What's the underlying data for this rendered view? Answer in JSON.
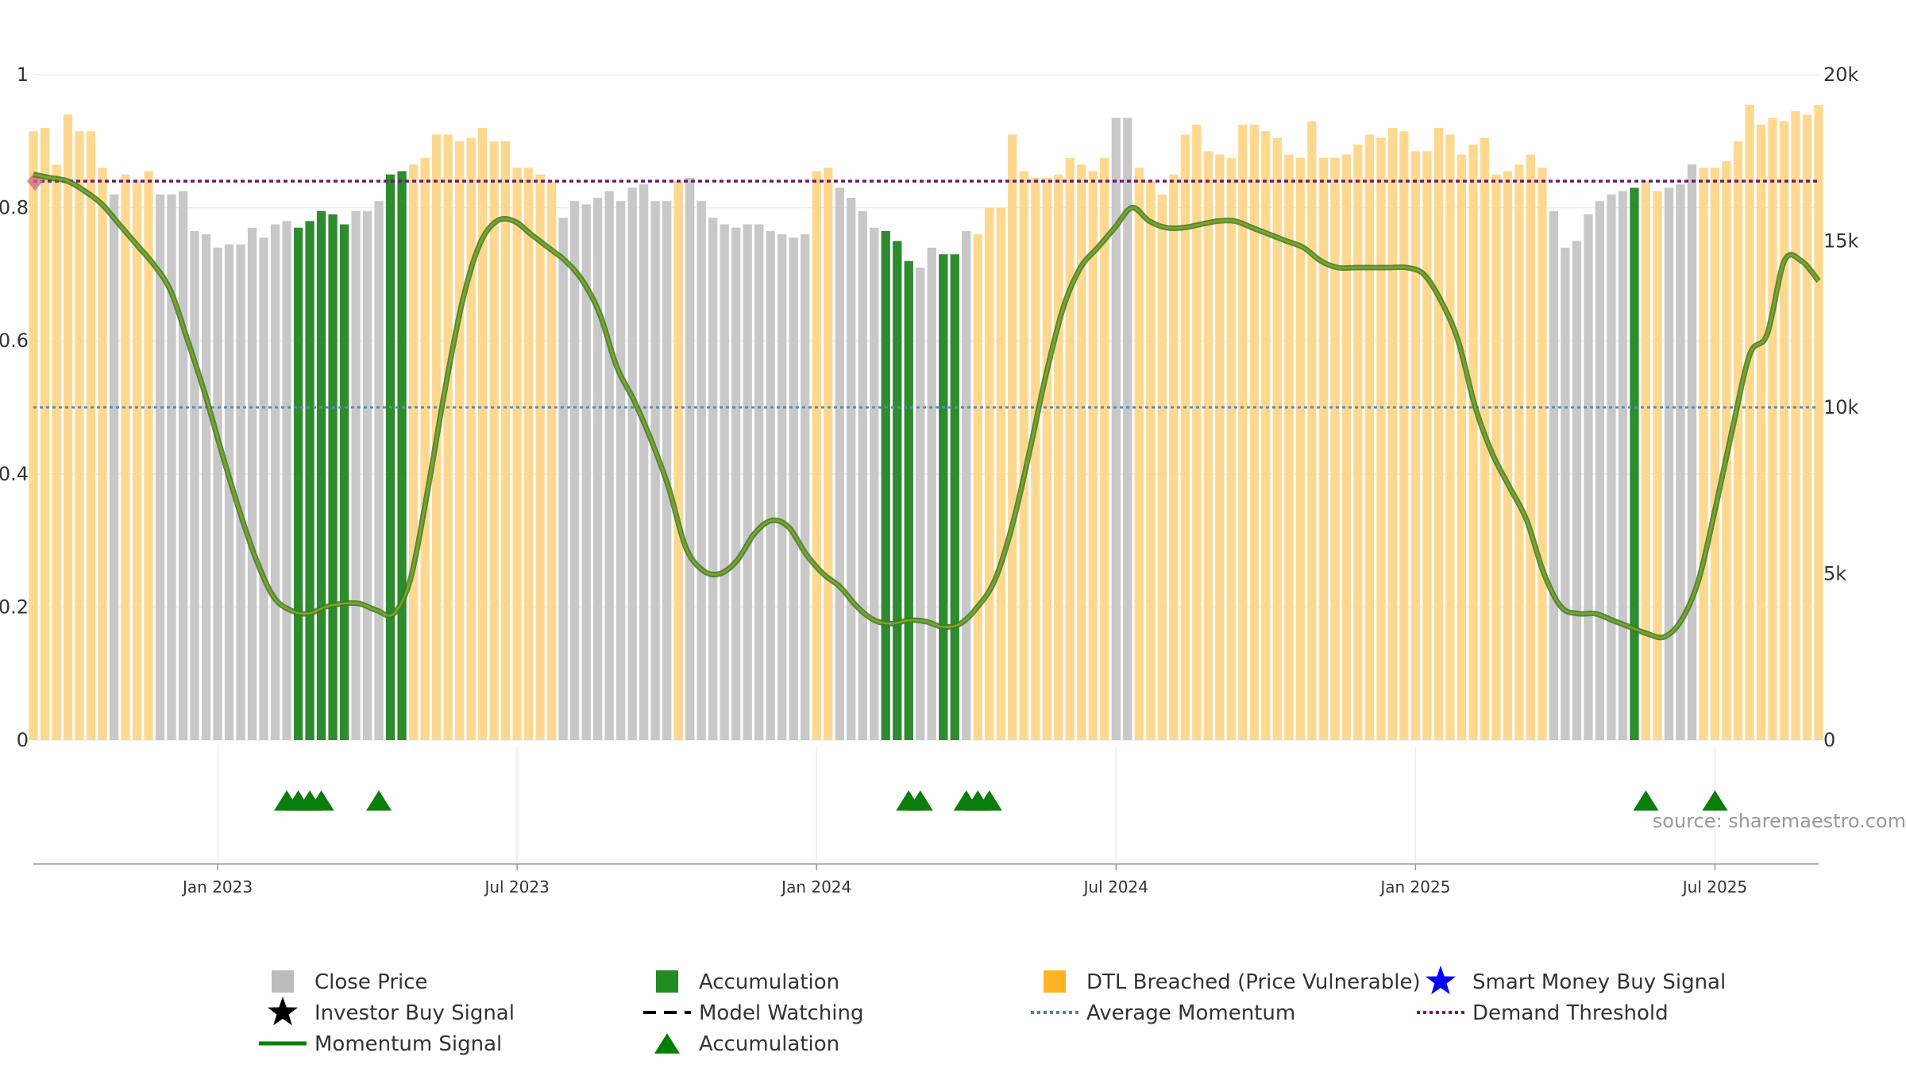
{
  "chart_data": {
    "type": "bar",
    "source_note": "source: sharemaestro.com",
    "y_left": {
      "min": 0,
      "max": 1,
      "ticks": [
        0,
        0.2,
        0.4,
        0.6,
        0.8,
        1
      ],
      "tick_labels": [
        "0",
        "0.2",
        "0.4",
        "0.6",
        "0.8",
        "1"
      ]
    },
    "y_right": {
      "min": 0,
      "max": 20000,
      "ticks": [
        0,
        5000,
        10000,
        15000,
        20000
      ],
      "tick_labels": [
        "0",
        "5k",
        "10k",
        "15k",
        "20k"
      ]
    },
    "x_ticks": [
      {
        "label": "Jan 2023",
        "week": 16
      },
      {
        "label": "Jul 2023",
        "week": 42
      },
      {
        "label": "Jan 2024",
        "week": 68
      },
      {
        "label": "Jul 2024",
        "week": 94
      },
      {
        "label": "Jan 2025",
        "week": 120
      },
      {
        "label": "Jul 2025",
        "week": 146
      }
    ],
    "close_price": [
      18.3,
      18.4,
      17.3,
      18.8,
      18.3,
      18.3,
      17.2,
      16.4,
      17.0,
      16.8,
      17.1,
      16.4,
      16.4,
      16.5,
      15.3,
      15.2,
      14.8,
      14.9,
      14.9,
      15.4,
      15.1,
      15.5,
      15.6,
      15.4,
      15.6,
      15.9,
      15.8,
      15.5,
      15.9,
      15.9,
      16.2,
      17.0,
      17.1,
      17.3,
      17.5,
      18.2,
      18.2,
      18.0,
      18.1,
      18.4,
      18.0,
      18.0,
      17.2,
      17.2,
      17.0,
      16.8,
      15.7,
      16.2,
      16.1,
      16.3,
      16.5,
      16.2,
      16.6,
      16.7,
      16.2,
      16.2,
      16.8,
      16.9,
      16.2,
      15.7,
      15.5,
      15.4,
      15.5,
      15.5,
      15.3,
      15.2,
      15.1,
      15.2,
      17.1,
      17.2,
      16.6,
      16.3,
      15.9,
      15.4,
      15.3,
      15.0,
      14.4,
      14.2,
      14.8,
      14.6,
      14.6,
      15.3,
      15.2,
      16.0,
      16.0,
      18.2,
      17.1,
      16.9,
      16.9,
      17.0,
      17.5,
      17.3,
      17.1,
      17.5,
      18.7,
      18.7,
      17.2,
      16.8,
      16.4,
      17.0,
      18.2,
      18.5,
      17.7,
      17.6,
      17.5,
      18.5,
      18.5,
      18.3,
      18.1,
      17.6,
      17.5,
      18.6,
      17.5,
      17.5,
      17.6,
      17.9,
      18.2,
      18.1,
      18.4,
      18.3,
      17.7,
      17.7,
      18.4,
      18.2,
      17.6,
      17.9,
      18.1,
      17.0,
      17.1,
      17.3,
      17.6,
      17.2,
      15.9,
      14.8,
      15.0,
      15.8,
      16.2,
      16.4,
      16.5,
      16.6,
      16.8,
      16.5,
      16.6,
      16.7,
      17.3,
      17.2,
      17.2,
      17.4,
      18.0,
      19.1,
      18.5,
      18.7,
      18.6,
      18.9,
      18.8,
      19.1
    ],
    "bar_state": "DDDDDDDCDDDCCCCCCCCCCCCAAAAACCCAADDDDDDDDDDDDDCCCCCCCCCCDCCCCCCCCCCCDDCCCCAAACCAACDDDDDDDDDDDDCCDDDDDDDDDDDDDDDDDDDDDDDDDDDDDDDDDDDDCCCCCCCADDCCCDDDDDDDDDDDD",
    "bar_state_key": {
      "C": "Close Price",
      "A": "Accumulation",
      "D": "DTL Breached (Price Vulnerable)"
    },
    "momentum": [
      0.85,
      0.845,
      0.84,
      0.825,
      0.805,
      0.775,
      0.745,
      0.715,
      0.675,
      0.6,
      0.52,
      0.43,
      0.345,
      0.27,
      0.215,
      0.195,
      0.19,
      0.2,
      0.205,
      0.205,
      0.195,
      0.19,
      0.245,
      0.38,
      0.53,
      0.66,
      0.745,
      0.78,
      0.78,
      0.76,
      0.74,
      0.72,
      0.69,
      0.64,
      0.56,
      0.51,
      0.45,
      0.38,
      0.29,
      0.255,
      0.25,
      0.27,
      0.31,
      0.33,
      0.32,
      0.28,
      0.25,
      0.23,
      0.2,
      0.18,
      0.175,
      0.18,
      0.178,
      0.17,
      0.175,
      0.2,
      0.24,
      0.32,
      0.43,
      0.55,
      0.65,
      0.71,
      0.74,
      0.77,
      0.8,
      0.78,
      0.77,
      0.77,
      0.775,
      0.78,
      0.78,
      0.77,
      0.76,
      0.75,
      0.74,
      0.72,
      0.71,
      0.71,
      0.71,
      0.71,
      0.71,
      0.7,
      0.66,
      0.6,
      0.5,
      0.43,
      0.38,
      0.33,
      0.25,
      0.2,
      0.19,
      0.19,
      0.18,
      0.17,
      0.16,
      0.155,
      0.18,
      0.24,
      0.35,
      0.47,
      0.58,
      0.61,
      0.72,
      0.72,
      0.69
    ],
    "average_momentum": 0.5,
    "demand_threshold": 0.84,
    "accumulation_markers_week": [
      22,
      23,
      24,
      25,
      30,
      76,
      77,
      81,
      82,
      83,
      140,
      146
    ],
    "legend": [
      {
        "label": "Close Price",
        "color": "#bbbbbb",
        "shape": "square"
      },
      {
        "label": "Accumulation",
        "color": "#228b22",
        "shape": "square"
      },
      {
        "label": "DTL Breached (Price Vulnerable)",
        "color": "#ffa500",
        "shape": "square"
      },
      {
        "label": "Smart Money Buy Signal",
        "color": "#0000ff",
        "shape": "star"
      },
      {
        "label": "Investor Buy Signal",
        "color": "#000000",
        "shape": "star"
      },
      {
        "label": "Model Watching",
        "color": "#000000",
        "shape": "dash"
      },
      {
        "label": "Average Momentum",
        "color": "#4682b4",
        "shape": "dot-line"
      },
      {
        "label": "Demand Threshold",
        "color": "#800080",
        "shape": "dot-line"
      },
      {
        "label": "Momentum Signal",
        "color": "#008000",
        "shape": "line"
      },
      {
        "label": "Accumulation",
        "color": "#008000",
        "shape": "triangle"
      }
    ]
  }
}
